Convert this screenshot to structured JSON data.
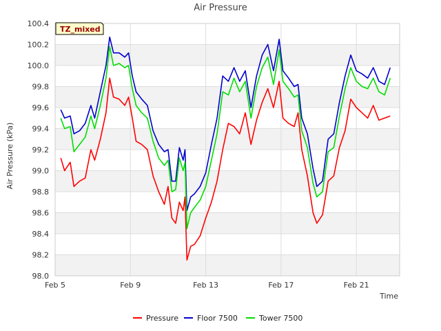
{
  "chart_data": {
    "type": "line",
    "title": "Air Pressure",
    "xlabel": "Time",
    "ylabel": "Air Pressure (kPa)",
    "annotation": "TZ_mixed",
    "xlim": [
      5,
      23.3
    ],
    "ylim": [
      98.0,
      100.4
    ],
    "x_ticks": [
      {
        "value": 5,
        "label": "Feb 5"
      },
      {
        "value": 9,
        "label": "Feb 9"
      },
      {
        "value": 13,
        "label": "Feb 13"
      },
      {
        "value": 17,
        "label": "Feb 17"
      },
      {
        "value": 21,
        "label": "Feb 21"
      }
    ],
    "y_ticks": [
      "98.0",
      "98.2",
      "98.4",
      "98.6",
      "98.8",
      "99.0",
      "99.2",
      "99.4",
      "99.6",
      "99.8",
      "100.0",
      "100.2",
      "100.4"
    ],
    "series": [
      {
        "name": "Pressure",
        "color": "#ff0000",
        "x": [
          5.3,
          5.5,
          5.8,
          6.0,
          6.3,
          6.6,
          6.9,
          7.1,
          7.4,
          7.7,
          7.9,
          8.1,
          8.4,
          8.7,
          8.9,
          9.1,
          9.3,
          9.6,
          9.9,
          10.2,
          10.5,
          10.8,
          11.0,
          11.2,
          11.4,
          11.6,
          11.8,
          11.9,
          12.0,
          12.2,
          12.4,
          12.7,
          13.0,
          13.3,
          13.6,
          13.9,
          14.2,
          14.5,
          14.8,
          15.1,
          15.4,
          15.7,
          16.0,
          16.3,
          16.6,
          16.9,
          17.1,
          17.4,
          17.7,
          17.9,
          18.1,
          18.4,
          18.7,
          18.9,
          19.2,
          19.5,
          19.8,
          20.1,
          20.4,
          20.7,
          21.0,
          21.3,
          21.6,
          21.9,
          22.2,
          22.5,
          22.8
        ],
        "y": [
          99.12,
          99.0,
          99.08,
          98.85,
          98.9,
          98.93,
          99.2,
          99.1,
          99.3,
          99.55,
          99.88,
          99.7,
          99.68,
          99.62,
          99.7,
          99.5,
          99.28,
          99.25,
          99.2,
          98.95,
          98.8,
          98.68,
          98.85,
          98.55,
          98.5,
          98.7,
          98.62,
          98.75,
          98.15,
          98.28,
          98.3,
          98.38,
          98.55,
          98.7,
          98.9,
          99.2,
          99.45,
          99.42,
          99.35,
          99.55,
          99.25,
          99.48,
          99.65,
          99.78,
          99.6,
          99.85,
          99.5,
          99.45,
          99.42,
          99.55,
          99.2,
          98.95,
          98.6,
          98.5,
          98.58,
          98.9,
          98.95,
          99.22,
          99.38,
          99.68,
          99.6,
          99.55,
          99.5,
          99.62,
          99.48,
          99.5,
          99.52
        ]
      },
      {
        "name": "Floor 7500",
        "color": "#0000cc",
        "x": [
          5.3,
          5.5,
          5.8,
          6.0,
          6.3,
          6.6,
          6.9,
          7.1,
          7.4,
          7.7,
          7.9,
          8.1,
          8.4,
          8.7,
          8.9,
          9.1,
          9.3,
          9.6,
          9.9,
          10.2,
          10.5,
          10.8,
          11.0,
          11.2,
          11.4,
          11.6,
          11.8,
          11.9,
          12.0,
          12.2,
          12.4,
          12.7,
          13.0,
          13.3,
          13.6,
          13.9,
          14.2,
          14.5,
          14.8,
          15.1,
          15.4,
          15.7,
          16.0,
          16.3,
          16.6,
          16.9,
          17.1,
          17.4,
          17.7,
          17.9,
          18.1,
          18.4,
          18.7,
          18.9,
          19.2,
          19.5,
          19.8,
          20.1,
          20.4,
          20.7,
          21.0,
          21.3,
          21.6,
          21.9,
          22.2,
          22.5,
          22.8
        ],
        "y": [
          99.58,
          99.5,
          99.52,
          99.35,
          99.38,
          99.45,
          99.62,
          99.5,
          99.75,
          100.0,
          100.27,
          100.12,
          100.12,
          100.08,
          100.12,
          99.9,
          99.75,
          99.68,
          99.62,
          99.38,
          99.25,
          99.18,
          99.2,
          98.9,
          98.9,
          99.22,
          99.1,
          99.2,
          98.62,
          98.75,
          98.78,
          98.85,
          98.98,
          99.25,
          99.5,
          99.9,
          99.85,
          99.98,
          99.85,
          99.95,
          99.6,
          99.9,
          100.1,
          100.2,
          99.95,
          100.25,
          99.95,
          99.88,
          99.8,
          99.82,
          99.5,
          99.35,
          99.02,
          98.85,
          98.9,
          99.3,
          99.35,
          99.65,
          99.9,
          100.1,
          99.95,
          99.92,
          99.88,
          99.98,
          99.85,
          99.82,
          99.98
        ]
      },
      {
        "name": "Tower 7500",
        "color": "#00dd00",
        "x": [
          5.3,
          5.5,
          5.8,
          6.0,
          6.3,
          6.6,
          6.9,
          7.1,
          7.4,
          7.7,
          7.9,
          8.1,
          8.4,
          8.7,
          8.9,
          9.1,
          9.3,
          9.6,
          9.9,
          10.2,
          10.5,
          10.8,
          11.0,
          11.2,
          11.4,
          11.6,
          11.8,
          11.9,
          12.0,
          12.2,
          12.4,
          12.7,
          13.0,
          13.3,
          13.6,
          13.9,
          14.2,
          14.5,
          14.8,
          15.1,
          15.4,
          15.7,
          16.0,
          16.3,
          16.6,
          16.9,
          17.1,
          17.4,
          17.7,
          17.9,
          18.1,
          18.4,
          18.7,
          18.9,
          19.2,
          19.5,
          19.8,
          20.1,
          20.4,
          20.7,
          21.0,
          21.3,
          21.6,
          21.9,
          22.2,
          22.5,
          22.8
        ],
        "y": [
          99.5,
          99.4,
          99.42,
          99.18,
          99.25,
          99.32,
          99.52,
          99.4,
          99.62,
          99.88,
          100.18,
          100.0,
          100.02,
          99.98,
          100.0,
          99.78,
          99.62,
          99.55,
          99.5,
          99.28,
          99.12,
          99.05,
          99.1,
          98.8,
          98.82,
          99.12,
          99.0,
          99.08,
          98.45,
          98.6,
          98.65,
          98.72,
          98.85,
          99.1,
          99.35,
          99.75,
          99.72,
          99.88,
          99.75,
          99.85,
          99.5,
          99.8,
          99.98,
          100.08,
          99.82,
          100.15,
          99.85,
          99.78,
          99.7,
          99.72,
          99.38,
          99.22,
          98.88,
          98.75,
          98.8,
          99.18,
          99.22,
          99.52,
          99.78,
          99.98,
          99.85,
          99.8,
          99.78,
          99.88,
          99.75,
          99.72,
          99.88
        ]
      }
    ]
  }
}
